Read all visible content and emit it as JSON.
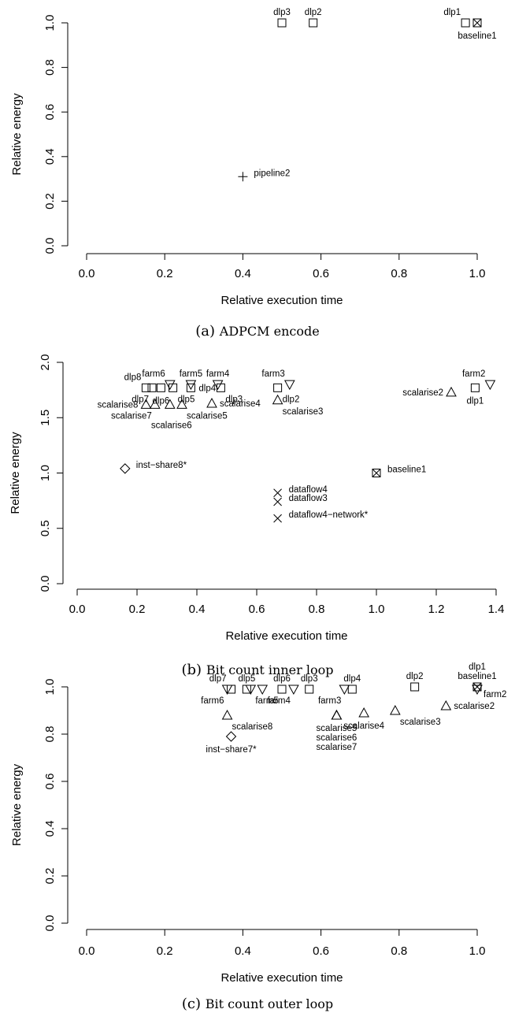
{
  "chart_data": [
    {
      "type": "scatter",
      "caption_tag": "(a)",
      "caption_text": "ADPCM encode",
      "xlabel": "Relative execution time",
      "ylabel": "Relative energy",
      "xlim": [
        0.0,
        1.0
      ],
      "ylim": [
        0.0,
        1.0
      ],
      "xticks": [
        "0.0",
        "0.2",
        "0.4",
        "0.6",
        "0.8",
        "1.0"
      ],
      "yticks": [
        "0.0",
        "0.2",
        "0.4",
        "0.6",
        "0.8",
        "1.0"
      ],
      "grid": false,
      "points": [
        {
          "x": 0.5,
          "y": 1.0,
          "marker": "square",
          "label": "dlp3",
          "pos": "above"
        },
        {
          "x": 0.58,
          "y": 1.0,
          "marker": "square",
          "label": "dlp2",
          "pos": "above"
        },
        {
          "x": 0.97,
          "y": 1.0,
          "marker": "square",
          "label": "dlp1",
          "pos": "above-left"
        },
        {
          "x": 1.0,
          "y": 1.0,
          "marker": "square-x",
          "label": "baseline1",
          "pos": "below"
        },
        {
          "x": 0.4,
          "y": 0.31,
          "marker": "plus",
          "label": "pipeline2",
          "pos": "right-up"
        }
      ]
    },
    {
      "type": "scatter",
      "caption_tag": "(b)",
      "caption_text": "Bit count inner loop",
      "xlabel": "Relative execution time",
      "ylabel": "Relative energy",
      "xlim": [
        0.0,
        1.4
      ],
      "ylim": [
        0.0,
        2.0
      ],
      "xticks": [
        "0.0",
        "0.2",
        "0.4",
        "0.6",
        "0.8",
        "1.0",
        "1.2",
        "1.4"
      ],
      "yticks": [
        "0.0",
        "0.5",
        "1.0",
        "1.5",
        "2.0"
      ],
      "grid": false,
      "points": [
        {
          "x": 0.23,
          "y": 1.77,
          "marker": "square",
          "label": "dlp8",
          "pos": "above-left"
        },
        {
          "x": 0.25,
          "y": 1.77,
          "marker": "square",
          "label": "dlp7",
          "pos": "below-left"
        },
        {
          "x": 0.28,
          "y": 1.77,
          "marker": "square",
          "label": "dlp6",
          "pos": "below"
        },
        {
          "x": 0.32,
          "y": 1.77,
          "marker": "square",
          "label": "dlp5",
          "pos": "below-right"
        },
        {
          "x": 0.38,
          "y": 1.77,
          "marker": "square",
          "label": "dlp4",
          "pos": "right"
        },
        {
          "x": 0.48,
          "y": 1.77,
          "marker": "square",
          "label": "dlp3",
          "pos": "below-right"
        },
        {
          "x": 0.67,
          "y": 1.77,
          "marker": "square",
          "label": "dlp2",
          "pos": "below-right"
        },
        {
          "x": 1.33,
          "y": 1.77,
          "marker": "square",
          "label": "dlp1",
          "pos": "below"
        },
        {
          "x": 0.31,
          "y": 1.8,
          "marker": "triangle-down",
          "label": "farm6",
          "pos": "above-left"
        },
        {
          "x": 0.38,
          "y": 1.8,
          "marker": "triangle-down",
          "label": "farm5",
          "pos": "above"
        },
        {
          "x": 0.47,
          "y": 1.8,
          "marker": "triangle-down",
          "label": "farm4",
          "pos": "above"
        },
        {
          "x": 0.71,
          "y": 1.8,
          "marker": "triangle-down",
          "label": "farm3",
          "pos": "above-left"
        },
        {
          "x": 1.38,
          "y": 1.8,
          "marker": "triangle-down",
          "label": "farm2",
          "pos": "above-left"
        },
        {
          "x": 0.23,
          "y": 1.62,
          "marker": "triangle-up",
          "label": "scalarise8",
          "pos": "left"
        },
        {
          "x": 0.26,
          "y": 1.62,
          "marker": "triangle-up",
          "label": "scalarise7",
          "pos": "below-left"
        },
        {
          "x": 0.31,
          "y": 1.62,
          "marker": "triangle-up",
          "label": "scalarise6",
          "pos": "below-far"
        },
        {
          "x": 0.35,
          "y": 1.62,
          "marker": "triangle-up",
          "label": "scalarise5",
          "pos": "below-right"
        },
        {
          "x": 0.45,
          "y": 1.63,
          "marker": "triangle-up",
          "label": "scalarise4",
          "pos": "right"
        },
        {
          "x": 0.67,
          "y": 1.66,
          "marker": "triangle-up",
          "label": "scalarise3",
          "pos": "below-right"
        },
        {
          "x": 1.25,
          "y": 1.73,
          "marker": "triangle-up",
          "label": "scalarise2",
          "pos": "left"
        },
        {
          "x": 1.0,
          "y": 1.0,
          "marker": "square-x",
          "label": "baseline1",
          "pos": "right-up"
        },
        {
          "x": 0.16,
          "y": 1.04,
          "marker": "diamond",
          "label": "inst−share8*",
          "pos": "right-up"
        },
        {
          "x": 0.67,
          "y": 0.82,
          "marker": "cross",
          "label": "dataflow4",
          "pos": "right-up"
        },
        {
          "x": 0.67,
          "y": 0.74,
          "marker": "cross",
          "label": "dataflow3",
          "pos": "right-up"
        },
        {
          "x": 0.67,
          "y": 0.59,
          "marker": "cross",
          "label": "dataflow4−network*",
          "pos": "right-up"
        }
      ]
    },
    {
      "type": "scatter",
      "caption_tag": "(c)",
      "caption_text": "Bit count outer loop",
      "xlabel": "Relative execution time",
      "ylabel": "Relative energy",
      "xlim": [
        0.0,
        1.0
      ],
      "ylim": [
        0.0,
        1.0
      ],
      "xticks": [
        "0.0",
        "0.2",
        "0.4",
        "0.6",
        "0.8",
        "1.0"
      ],
      "yticks": [
        "0.0",
        "0.2",
        "0.4",
        "0.6",
        "0.8",
        "1.0"
      ],
      "grid": false,
      "points": [
        {
          "x": 0.37,
          "y": 0.99,
          "marker": "square",
          "label": "dlp7",
          "pos": "above-left"
        },
        {
          "x": 0.41,
          "y": 0.99,
          "marker": "square",
          "label": "dlp5",
          "pos": "above"
        },
        {
          "x": 0.5,
          "y": 0.99,
          "marker": "square",
          "label": "dlp6",
          "pos": "above"
        },
        {
          "x": 0.57,
          "y": 0.99,
          "marker": "square",
          "label": "dlp3",
          "pos": "above"
        },
        {
          "x": 0.68,
          "y": 0.99,
          "marker": "square",
          "label": "dlp4",
          "pos": "above"
        },
        {
          "x": 0.84,
          "y": 1.0,
          "marker": "square",
          "label": "dlp2",
          "pos": "above"
        },
        {
          "x": 1.0,
          "y": 1.0,
          "marker": "square",
          "label": "dlp1",
          "pos": "above-high"
        },
        {
          "x": 1.0,
          "y": 1.0,
          "marker": "square-x",
          "label": "baseline1",
          "pos": "above"
        },
        {
          "x": 0.36,
          "y": 0.99,
          "marker": "triangle-down",
          "label": "farm6",
          "pos": "below-left"
        },
        {
          "x": 0.42,
          "y": 0.99,
          "marker": "triangle-down",
          "label": "farm5",
          "pos": "below-right"
        },
        {
          "x": 0.45,
          "y": 0.99,
          "marker": "triangle-down",
          "label": "",
          "pos": "none"
        },
        {
          "x": 0.53,
          "y": 0.99,
          "marker": "triangle-down",
          "label": "farm4",
          "pos": "below-left"
        },
        {
          "x": 0.66,
          "y": 0.99,
          "marker": "triangle-down",
          "label": "farm3",
          "pos": "below-left"
        },
        {
          "x": 1.0,
          "y": 0.99,
          "marker": "triangle-down",
          "label": "farm2",
          "pos": "right-low"
        },
        {
          "x": 0.36,
          "y": 0.88,
          "marker": "triangle-up",
          "label": "scalarise8",
          "pos": "below-right"
        },
        {
          "x": 0.64,
          "y": 0.88,
          "marker": "triangle-up",
          "label": "scalarise5",
          "pos": "below"
        },
        {
          "x": 0.64,
          "y": 0.88,
          "marker": "triangle-up",
          "label": "scalarise6",
          "pos": "below2"
        },
        {
          "x": 0.64,
          "y": 0.88,
          "marker": "triangle-up",
          "label": "scalarise7",
          "pos": "below3"
        },
        {
          "x": 0.71,
          "y": 0.89,
          "marker": "triangle-up",
          "label": "scalarise4",
          "pos": "below"
        },
        {
          "x": 0.79,
          "y": 0.9,
          "marker": "triangle-up",
          "label": "scalarise3",
          "pos": "below-right"
        },
        {
          "x": 0.92,
          "y": 0.92,
          "marker": "triangle-up",
          "label": "scalarise2",
          "pos": "right"
        },
        {
          "x": 0.37,
          "y": 0.79,
          "marker": "diamond",
          "label": "inst−share7*",
          "pos": "below"
        }
      ]
    }
  ]
}
